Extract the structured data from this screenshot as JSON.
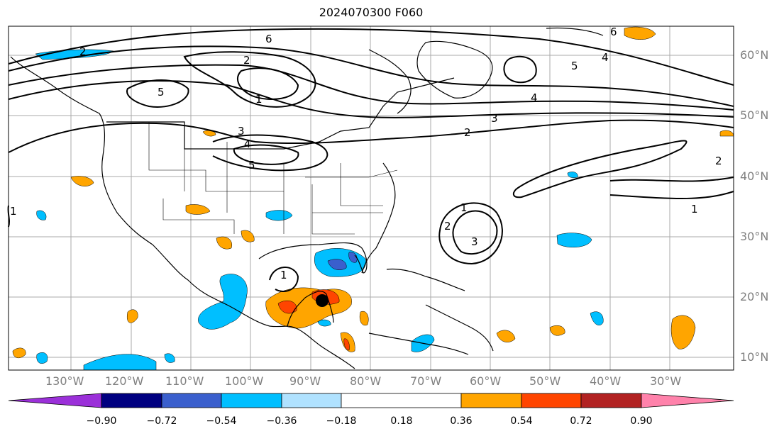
{
  "title": "2024070300 F060",
  "lat_labels": [
    "60°N",
    "50°N",
    "40°N",
    "30°N",
    "20°N",
    "10°N"
  ],
  "lon_labels": [
    "130°W",
    "120°W",
    "110°W",
    "100°W",
    "90°W",
    "80°W",
    "70°W",
    "60°W",
    "50°W",
    "40°W",
    "30°W"
  ],
  "colorbar": {
    "ticks": [
      "−0.90",
      "−0.72",
      "−0.54",
      "−0.36",
      "−0.18",
      "0.18",
      "0.36",
      "0.54",
      "0.72",
      "0.90"
    ],
    "colors": [
      "#9b30d9",
      "#000080",
      "#3a5fcd",
      "#00bfff",
      "#b0e2ff",
      "#ffffff",
      "#ffec8b",
      "#ffa500",
      "#ff4500",
      "#b22222",
      "#ff82ab"
    ]
  },
  "contour_labels": [
    "6",
    "2",
    "5",
    "1",
    "3",
    "4",
    "5",
    "4",
    "5",
    "4",
    "3",
    "2",
    "2",
    "1",
    "1",
    "2",
    "3",
    "1",
    "6",
    "2",
    "1"
  ]
}
